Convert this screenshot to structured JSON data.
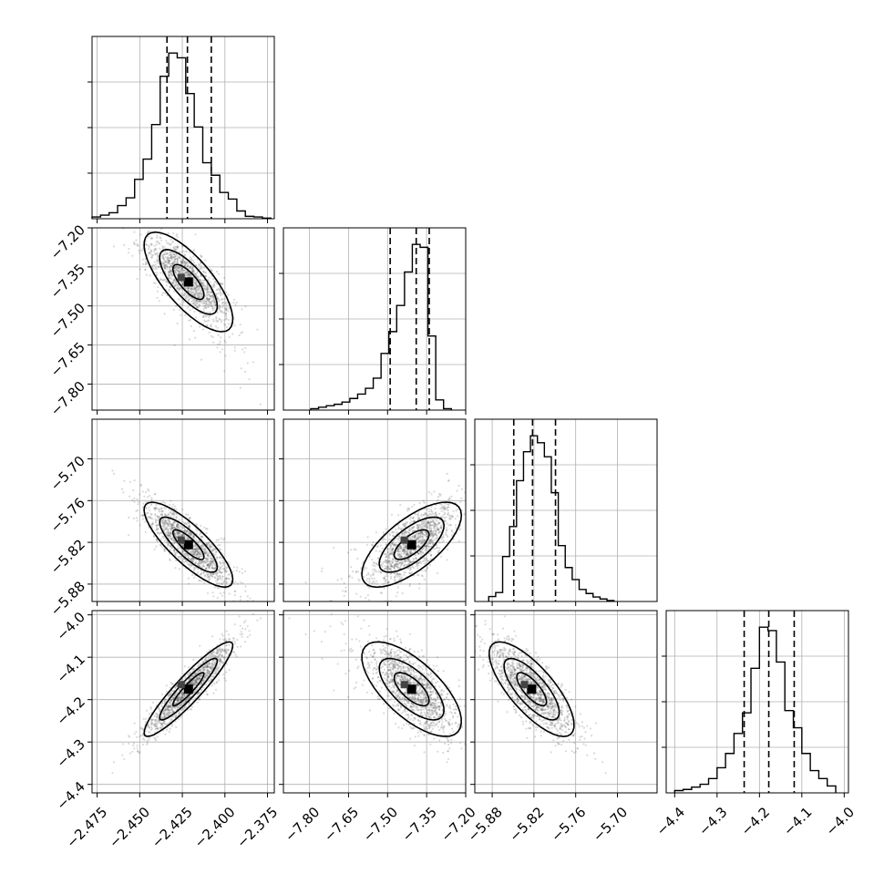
{
  "chart_data": {
    "type": "corner",
    "grid": true,
    "colors": {
      "points": "#555555",
      "contours": "#000000"
    },
    "params": [
      {
        "index": 0,
        "range": [
          -2.478,
          -2.371
        ],
        "ticks": [
          -2.475,
          -2.45,
          -2.425,
          -2.4,
          -2.375
        ],
        "tick_labels": [
          "−2.475",
          "−2.450",
          "−2.425",
          "−2.400",
          "−2.375"
        ],
        "quantiles": [
          -2.434,
          -2.422,
          -2.408
        ],
        "hist": {
          "edges": [
            -2.478,
            -2.473,
            -2.468,
            -2.463,
            -2.458,
            -2.453,
            -2.448,
            -2.443,
            -2.438,
            -2.433,
            -2.428,
            -2.423,
            -2.418,
            -2.413,
            -2.408,
            -2.403,
            -2.398,
            -2.393,
            -2.388,
            -2.383,
            -2.378,
            -2.373
          ],
          "counts": [
            3,
            6,
            10,
            22,
            35,
            66,
            100,
            158,
            239,
            278,
            270,
            210,
            154,
            94,
            73,
            44,
            33,
            13,
            4,
            3,
            1
          ]
        }
      },
      {
        "index": 1,
        "range": [
          -7.9,
          -7.2
        ],
        "ticks": [
          -7.8,
          -7.65,
          -7.5,
          -7.35,
          -7.2
        ],
        "tick_labels": [
          "−7.80",
          "−7.65",
          "−7.50",
          "−7.35",
          "−7.20"
        ],
        "quantiles": [
          -7.49,
          -7.39,
          -7.34
        ],
        "hist": {
          "edges": [
            -7.795,
            -7.765,
            -7.735,
            -7.705,
            -7.675,
            -7.645,
            -7.615,
            -7.585,
            -7.555,
            -7.525,
            -7.495,
            -7.465,
            -7.435,
            -7.405,
            -7.375,
            -7.345,
            -7.315,
            -7.285,
            -7.255
          ],
          "counts": [
            2,
            4,
            6,
            8,
            11,
            16,
            22,
            30,
            44,
            78,
            108,
            144,
            190,
            228,
            224,
            102,
            14,
            2
          ]
        }
      },
      {
        "index": 2,
        "range": [
          -5.905,
          -5.643
        ],
        "ticks": [
          -5.88,
          -5.82,
          -5.76,
          -5.7
        ],
        "tick_labels": [
          "−5.88",
          "−5.82",
          "−5.76",
          "−5.70"
        ],
        "quantiles": [
          -5.849,
          -5.822,
          -5.789
        ],
        "hist": {
          "edges": [
            -5.885,
            -5.875,
            -5.865,
            -5.855,
            -5.845,
            -5.835,
            -5.825,
            -5.815,
            -5.805,
            -5.795,
            -5.785,
            -5.775,
            -5.765,
            -5.755,
            -5.745,
            -5.735,
            -5.725,
            -5.715,
            -5.705
          ],
          "counts": [
            10,
            18,
            90,
            150,
            242,
            300,
            332,
            318,
            290,
            218,
            112,
            68,
            44,
            24,
            16,
            9,
            5,
            2
          ]
        }
      },
      {
        "index": 3,
        "range": [
          -4.42,
          -3.99
        ],
        "ticks": [
          -4.4,
          -4.3,
          -4.2,
          -4.1,
          -4.0
        ],
        "tick_labels": [
          "−4.4",
          "−4.3",
          "−4.2",
          "−4.1",
          "−4.0"
        ],
        "quantiles": [
          -4.236,
          -4.178,
          -4.118
        ],
        "hist": {
          "edges": [
            -4.4,
            -4.38,
            -4.36,
            -4.34,
            -4.32,
            -4.3,
            -4.28,
            -4.26,
            -4.24,
            -4.22,
            -4.2,
            -4.18,
            -4.16,
            -4.14,
            -4.12,
            -4.1,
            -4.08,
            -4.06,
            -4.04,
            -4.02
          ],
          "counts": [
            4,
            6,
            10,
            15,
            25,
            44,
            69,
            104,
            140,
            218,
            290,
            284,
            229,
            144,
            114,
            69,
            39,
            25,
            12
          ]
        }
      }
    ]
  }
}
